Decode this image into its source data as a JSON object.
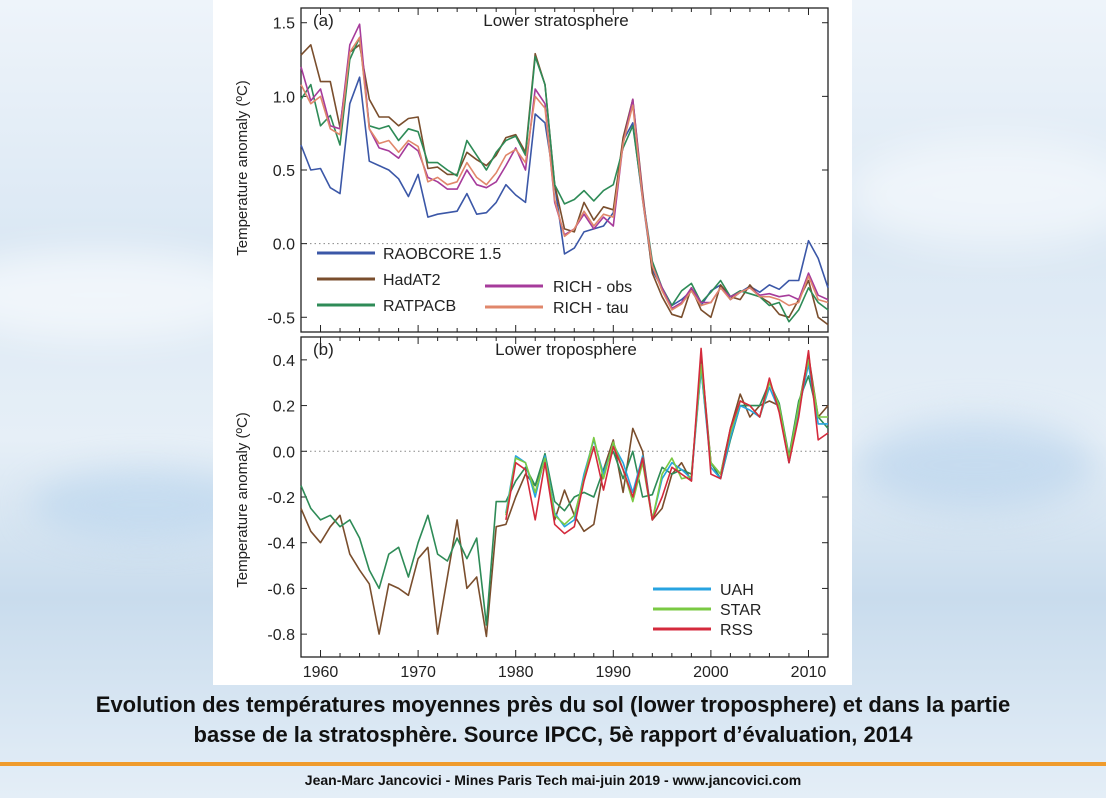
{
  "caption": {
    "line1": "Evolution des températures moyennes près du sol (lower troposphere) et dans la partie",
    "line2": "basse de la stratosphère. Source IPCC, 5è rapport d’évaluation, 2014"
  },
  "footer": "Jean-Marc Jancovici - Mines Paris Tech mai-juin 2019 - www.jancovici.com",
  "chart_data": [
    {
      "type": "line",
      "panel_label": "(a)",
      "title": "Lower stratosphere",
      "xlabel": "",
      "ylabel": "Temperature anomaly (ºC)",
      "xlim": [
        1958,
        2012
      ],
      "ylim": [
        -0.6,
        1.6
      ],
      "yticks": [
        -0.5,
        0.0,
        0.5,
        1.0,
        1.5
      ],
      "ytick_labels": [
        "-0.5",
        "0.0",
        "0.5",
        "1.0",
        "1.5"
      ],
      "zero_line": true,
      "legend_position": "lower-left",
      "x": [
        1958,
        1959,
        1960,
        1961,
        1962,
        1963,
        1964,
        1965,
        1966,
        1967,
        1968,
        1969,
        1970,
        1971,
        1972,
        1973,
        1974,
        1975,
        1976,
        1977,
        1978,
        1979,
        1980,
        1981,
        1982,
        1983,
        1984,
        1985,
        1986,
        1987,
        1988,
        1989,
        1990,
        1991,
        1992,
        1993,
        1994,
        1995,
        1996,
        1997,
        1998,
        1999,
        2000,
        2001,
        2002,
        2003,
        2004,
        2005,
        2006,
        2007,
        2008,
        2009,
        2010,
        2011,
        2012
      ],
      "series": [
        {
          "name": "RAOBCORE 1.5",
          "color": "#3b57a7",
          "values": [
            0.67,
            0.5,
            0.51,
            0.38,
            0.34,
            0.95,
            1.13,
            0.56,
            0.53,
            0.5,
            0.44,
            0.32,
            0.47,
            0.18,
            0.2,
            0.21,
            0.22,
            0.34,
            0.2,
            0.21,
            0.28,
            0.4,
            0.33,
            0.28,
            0.88,
            0.82,
            0.4,
            -0.07,
            -0.03,
            0.08,
            0.1,
            0.12,
            0.21,
            0.7,
            0.82,
            0.3,
            -0.18,
            -0.3,
            -0.42,
            -0.38,
            -0.32,
            -0.42,
            -0.32,
            -0.28,
            -0.38,
            -0.33,
            -0.29,
            -0.33,
            -0.28,
            -0.31,
            -0.25,
            -0.25,
            0.02,
            -0.1,
            -0.3
          ]
        },
        {
          "name": "HadAT2",
          "color": "#7a4e2d",
          "values": [
            1.28,
            1.35,
            1.1,
            1.1,
            0.79,
            1.3,
            1.35,
            0.98,
            0.86,
            0.86,
            0.8,
            0.85,
            0.86,
            0.51,
            0.52,
            0.47,
            0.47,
            0.62,
            0.57,
            0.53,
            0.6,
            0.72,
            0.74,
            0.62,
            1.29,
            1.08,
            0.4,
            0.1,
            0.08,
            0.28,
            0.16,
            0.25,
            0.23,
            0.72,
            0.98,
            0.35,
            -0.2,
            -0.36,
            -0.48,
            -0.5,
            -0.3,
            -0.45,
            -0.5,
            -0.28,
            -0.36,
            -0.38,
            -0.28,
            -0.36,
            -0.4,
            -0.48,
            -0.5,
            -0.38,
            -0.25,
            -0.5,
            -0.55
          ]
        },
        {
          "name": "RATPACB",
          "color": "#2e8b57",
          "values": [
            0.98,
            1.08,
            0.8,
            0.87,
            0.67,
            1.25,
            1.4,
            0.8,
            0.78,
            0.8,
            0.7,
            0.78,
            0.76,
            0.55,
            0.55,
            0.5,
            0.46,
            0.7,
            0.6,
            0.5,
            0.62,
            0.7,
            0.73,
            0.6,
            1.27,
            1.08,
            0.4,
            0.27,
            0.3,
            0.36,
            0.29,
            0.36,
            0.4,
            0.65,
            0.8,
            0.32,
            -0.12,
            -0.3,
            -0.42,
            -0.32,
            -0.27,
            -0.4,
            -0.33,
            -0.25,
            -0.36,
            -0.32,
            -0.34,
            -0.36,
            -0.42,
            -0.4,
            -0.53,
            -0.45,
            -0.3,
            -0.4,
            -0.45
          ]
        },
        {
          "name": "RICH - obs",
          "color": "#a63b9b",
          "values": [
            1.2,
            0.97,
            1.05,
            0.8,
            0.78,
            1.35,
            1.49,
            0.78,
            0.65,
            0.63,
            0.58,
            0.68,
            0.63,
            0.45,
            0.42,
            0.37,
            0.37,
            0.5,
            0.4,
            0.38,
            0.42,
            0.53,
            0.65,
            0.5,
            1.05,
            0.95,
            0.28,
            0.06,
            0.1,
            0.2,
            0.1,
            0.18,
            0.12,
            0.68,
            0.98,
            0.32,
            -0.15,
            -0.3,
            -0.44,
            -0.4,
            -0.3,
            -0.4,
            -0.4,
            -0.3,
            -0.36,
            -0.33,
            -0.3,
            -0.35,
            -0.34,
            -0.36,
            -0.35,
            -0.38,
            -0.2,
            -0.35,
            -0.38
          ]
        },
        {
          "name": "RICH - tau",
          "color": "#e0876b",
          "values": [
            1.08,
            0.95,
            1.0,
            0.78,
            0.74,
            1.3,
            1.4,
            0.78,
            0.68,
            0.7,
            0.62,
            0.7,
            0.66,
            0.42,
            0.45,
            0.4,
            0.42,
            0.55,
            0.45,
            0.4,
            0.48,
            0.6,
            0.64,
            0.55,
            1.0,
            0.92,
            0.3,
            0.05,
            0.1,
            0.22,
            0.12,
            0.2,
            0.18,
            0.68,
            0.94,
            0.3,
            -0.15,
            -0.32,
            -0.45,
            -0.41,
            -0.32,
            -0.42,
            -0.4,
            -0.3,
            -0.38,
            -0.33,
            -0.3,
            -0.36,
            -0.36,
            -0.38,
            -0.42,
            -0.4,
            -0.22,
            -0.38,
            -0.4
          ]
        }
      ]
    },
    {
      "type": "line",
      "panel_label": "(b)",
      "title": "Lower troposphere",
      "xlabel": "",
      "ylabel": "Temperature anomaly (ºC)",
      "xlim": [
        1958,
        2012
      ],
      "ylim": [
        -0.9,
        0.5
      ],
      "yticks": [
        -0.8,
        -0.6,
        -0.4,
        -0.2,
        0.0,
        0.2,
        0.4
      ],
      "ytick_labels": [
        "-0.8",
        "-0.6",
        "-0.4",
        "-0.2",
        "0.0",
        "0.2",
        "0.4"
      ],
      "xticks": [
        1960,
        1970,
        1980,
        1990,
        2000,
        2010
      ],
      "xtick_labels": [
        "1960",
        "1970",
        "1980",
        "1990",
        "2000",
        "2010"
      ],
      "zero_line": true,
      "legend_position": "lower-right",
      "x": [
        1958,
        1959,
        1960,
        1961,
        1962,
        1963,
        1964,
        1965,
        1966,
        1967,
        1968,
        1969,
        1970,
        1971,
        1972,
        1973,
        1974,
        1975,
        1976,
        1977,
        1978,
        1979,
        1980,
        1981,
        1982,
        1983,
        1984,
        1985,
        1986,
        1987,
        1988,
        1989,
        1990,
        1991,
        1992,
        1993,
        1994,
        1995,
        1996,
        1997,
        1998,
        1999,
        2000,
        2001,
        2002,
        2003,
        2004,
        2005,
        2006,
        2007,
        2008,
        2009,
        2010,
        2011,
        2012
      ],
      "series": [
        {
          "name": "HadAT2",
          "color": "#7a4e2d",
          "legend": false,
          "values": [
            -0.25,
            -0.35,
            -0.4,
            -0.33,
            -0.28,
            -0.45,
            -0.52,
            -0.58,
            -0.8,
            -0.58,
            -0.6,
            -0.63,
            -0.47,
            -0.42,
            -0.8,
            -0.55,
            -0.3,
            -0.6,
            -0.55,
            -0.81,
            -0.33,
            -0.32,
            -0.2,
            -0.1,
            -0.15,
            -0.03,
            -0.3,
            -0.17,
            -0.28,
            -0.35,
            -0.32,
            -0.08,
            0.05,
            -0.18,
            0.1,
            0.0,
            -0.3,
            -0.25,
            -0.1,
            -0.05,
            -0.13,
            0.42,
            -0.05,
            -0.1,
            0.1,
            0.25,
            0.15,
            0.2,
            0.22,
            0.2,
            -0.05,
            0.2,
            0.42,
            0.15,
            0.2
          ]
        },
        {
          "name": "RATPACB",
          "color": "#2e8b57",
          "legend": false,
          "values": [
            -0.15,
            -0.25,
            -0.3,
            -0.28,
            -0.33,
            -0.3,
            -0.38,
            -0.52,
            -0.6,
            -0.45,
            -0.42,
            -0.55,
            -0.4,
            -0.28,
            -0.45,
            -0.48,
            -0.38,
            -0.47,
            -0.38,
            -0.76,
            -0.22,
            -0.22,
            -0.13,
            -0.07,
            -0.15,
            -0.01,
            -0.22,
            -0.26,
            -0.2,
            -0.18,
            -0.2,
            -0.08,
            0.0,
            -0.12,
            0.0,
            -0.2,
            -0.19,
            -0.07,
            -0.1,
            -0.08,
            -0.1,
            0.36,
            -0.05,
            -0.12,
            0.05,
            0.2,
            0.2,
            0.2,
            0.3,
            0.21,
            -0.02,
            0.22,
            0.33,
            0.15,
            0.1
          ]
        },
        {
          "name": "UAH",
          "color": "#27a3e0",
          "legend": true,
          "values": [
            null,
            null,
            null,
            null,
            null,
            null,
            null,
            null,
            null,
            null,
            null,
            null,
            null,
            null,
            null,
            null,
            null,
            null,
            null,
            null,
            null,
            -0.27,
            -0.02,
            -0.05,
            -0.2,
            -0.02,
            -0.27,
            -0.33,
            -0.3,
            -0.1,
            0.05,
            -0.1,
            0.03,
            -0.05,
            -0.18,
            -0.02,
            -0.3,
            -0.12,
            -0.05,
            -0.08,
            -0.12,
            0.36,
            -0.07,
            -0.12,
            0.06,
            0.2,
            0.18,
            0.15,
            0.28,
            0.18,
            -0.05,
            0.18,
            0.38,
            0.12,
            0.12
          ]
        },
        {
          "name": "STAR",
          "color": "#7ac943",
          "legend": true,
          "values": [
            null,
            null,
            null,
            null,
            null,
            null,
            null,
            null,
            null,
            null,
            null,
            null,
            null,
            null,
            null,
            null,
            null,
            null,
            null,
            null,
            null,
            -0.28,
            -0.03,
            -0.05,
            -0.18,
            -0.03,
            -0.28,
            -0.32,
            -0.28,
            -0.12,
            0.06,
            -0.12,
            0.04,
            -0.08,
            -0.22,
            -0.05,
            -0.3,
            -0.1,
            -0.03,
            -0.12,
            -0.11,
            0.38,
            -0.05,
            -0.1,
            0.08,
            0.22,
            0.2,
            0.15,
            0.3,
            0.2,
            -0.03,
            0.2,
            0.4,
            0.15,
            0.15
          ]
        },
        {
          "name": "RSS",
          "color": "#d42a3c",
          "legend": true,
          "values": [
            null,
            null,
            null,
            null,
            null,
            null,
            null,
            null,
            null,
            null,
            null,
            null,
            null,
            null,
            null,
            null,
            null,
            null,
            null,
            null,
            null,
            -0.3,
            -0.05,
            -0.08,
            -0.3,
            -0.05,
            -0.32,
            -0.36,
            -0.33,
            -0.13,
            0.02,
            -0.17,
            0.02,
            -0.08,
            -0.2,
            -0.03,
            -0.3,
            -0.2,
            -0.07,
            -0.1,
            -0.13,
            0.45,
            -0.1,
            -0.12,
            0.1,
            0.22,
            0.2,
            0.15,
            0.32,
            0.17,
            -0.05,
            0.15,
            0.44,
            0.05,
            0.08
          ]
        }
      ]
    }
  ]
}
